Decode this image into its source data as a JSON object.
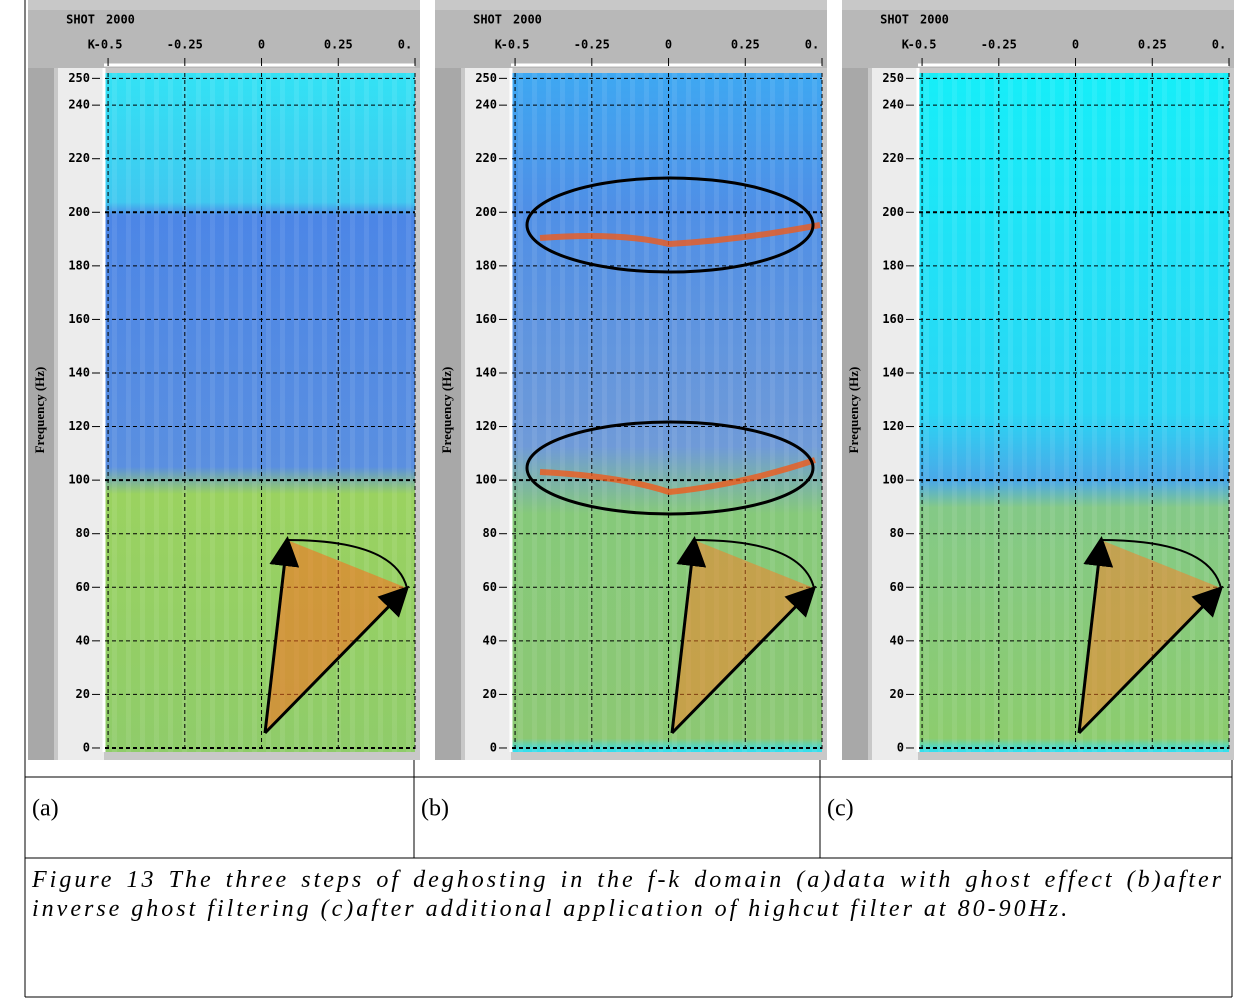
{
  "figure": {
    "panels": [
      {
        "header": {
          "shot_label": "SHOT",
          "shot": "2000",
          "k_label": "K"
        },
        "y_label": "Frequency (Hz)",
        "xlim": [
          -0.51,
          0.5
        ],
        "ylim": [
          -1.5,
          252
        ],
        "xticks": [
          -0.5,
          -0.25,
          0,
          0.25,
          {
            "value": 0.5,
            "label": "0."
          }
        ],
        "yticks": [
          0,
          20,
          40,
          60,
          80,
          100,
          120,
          140,
          160,
          180,
          200,
          220,
          240,
          250
        ],
        "panel_label": "(a)"
      },
      {
        "header": {
          "shot_label": "SHOT",
          "shot": "2000",
          "k_label": "K"
        },
        "y_label": "Frequency (Hz)",
        "xlim": [
          -0.51,
          0.5
        ],
        "ylim": [
          -1.5,
          252
        ],
        "xticks": [
          -0.5,
          -0.25,
          0,
          0.25,
          {
            "value": 0.5,
            "label": "0."
          }
        ],
        "yticks": [
          0,
          20,
          40,
          60,
          80,
          100,
          120,
          140,
          160,
          180,
          200,
          220,
          240,
          250
        ],
        "panel_label": "(b)"
      },
      {
        "header": {
          "shot_label": "SHOT",
          "shot": "2000",
          "k_label": "K"
        },
        "y_label": "Frequency (Hz)",
        "xlim": [
          -0.51,
          0.5
        ],
        "ylim": [
          -1.5,
          252
        ],
        "xticks": [
          -0.5,
          -0.25,
          0,
          0.25,
          {
            "value": 0.5,
            "label": "0."
          }
        ],
        "yticks": [
          0,
          20,
          40,
          60,
          80,
          100,
          120,
          140,
          160,
          180,
          200,
          220,
          240,
          250
        ],
        "panel_label": "(c)"
      }
    ],
    "caption": "Figure 13 The three steps of deghosting in the f-k domain (a)data with ghost effect (b)after inverse ghost filtering (c)after additional application of highcut filter at 80-90Hz."
  }
}
